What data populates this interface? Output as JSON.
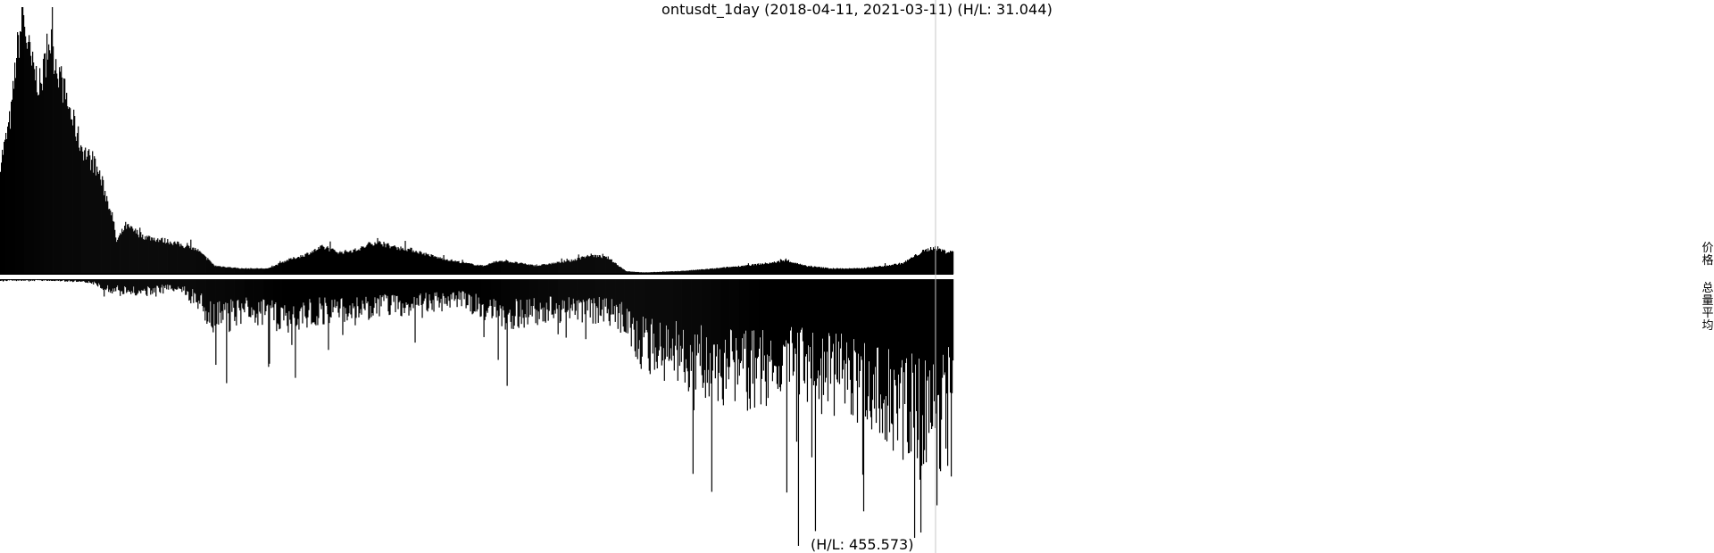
{
  "chart_data": {
    "type": "area",
    "title": "ontusdt_1day (2018-04-11, 2021-03-11) (H/L: 31.044)",
    "x_start": "2018-04-11",
    "x_end": "2021-03-11",
    "price_panel": {
      "name": "价格",
      "high_low_ratio": 31.044,
      "keyframes": [
        [
          0,
          0.42
        ],
        [
          6,
          0.5
        ],
        [
          12,
          0.6
        ],
        [
          18,
          0.82
        ],
        [
          25,
          0.96
        ],
        [
          35,
          0.78
        ],
        [
          45,
          0.7
        ],
        [
          55,
          0.88
        ],
        [
          60,
          0.82
        ],
        [
          75,
          0.64
        ],
        [
          90,
          0.48
        ],
        [
          110,
          0.38
        ],
        [
          125,
          0.22
        ],
        [
          130,
          0.12
        ],
        [
          140,
          0.18
        ],
        [
          160,
          0.14
        ],
        [
          190,
          0.12
        ],
        [
          220,
          0.09
        ],
        [
          240,
          0.03
        ],
        [
          270,
          0.02
        ],
        [
          300,
          0.02
        ],
        [
          320,
          0.05
        ],
        [
          340,
          0.07
        ],
        [
          360,
          0.1
        ],
        [
          380,
          0.08
        ],
        [
          400,
          0.09
        ],
        [
          420,
          0.12
        ],
        [
          440,
          0.1
        ],
        [
          460,
          0.09
        ],
        [
          490,
          0.06
        ],
        [
          520,
          0.04
        ],
        [
          540,
          0.03
        ],
        [
          560,
          0.05
        ],
        [
          580,
          0.04
        ],
        [
          600,
          0.03
        ],
        [
          620,
          0.04
        ],
        [
          640,
          0.05
        ],
        [
          660,
          0.07
        ],
        [
          680,
          0.06
        ],
        [
          700,
          0.01
        ],
        [
          720,
          0.005
        ],
        [
          760,
          0.01
        ],
        [
          800,
          0.02
        ],
        [
          830,
          0.03
        ],
        [
          860,
          0.04
        ],
        [
          880,
          0.05
        ],
        [
          900,
          0.03
        ],
        [
          930,
          0.02
        ],
        [
          960,
          0.02
        ],
        [
          990,
          0.03
        ],
        [
          1010,
          0.04
        ],
        [
          1030,
          0.08
        ],
        [
          1045,
          0.1
        ],
        [
          1060,
          0.08
        ],
        [
          1067,
          0.09
        ]
      ],
      "spikes": [
        [
          25,
          1.0
        ]
      ]
    },
    "volume_panel": {
      "name": "总量平均",
      "high_low_ratio": 455.573,
      "keyframes": [
        [
          0,
          0.005
        ],
        [
          60,
          0.005
        ],
        [
          100,
          0.01
        ],
        [
          125,
          0.04
        ],
        [
          150,
          0.05
        ],
        [
          200,
          0.03
        ],
        [
          220,
          0.08
        ],
        [
          240,
          0.15
        ],
        [
          280,
          0.12
        ],
        [
          320,
          0.14
        ],
        [
          360,
          0.12
        ],
        [
          400,
          0.11
        ],
        [
          440,
          0.1
        ],
        [
          480,
          0.09
        ],
        [
          520,
          0.08
        ],
        [
          560,
          0.14
        ],
        [
          600,
          0.12
        ],
        [
          640,
          0.11
        ],
        [
          680,
          0.12
        ],
        [
          700,
          0.15
        ],
        [
          720,
          0.25
        ],
        [
          760,
          0.28
        ],
        [
          800,
          0.32
        ],
        [
          840,
          0.35
        ],
        [
          880,
          0.3
        ],
        [
          900,
          0.33
        ],
        [
          950,
          0.38
        ],
        [
          1000,
          0.45
        ],
        [
          1040,
          0.55
        ],
        [
          1060,
          0.45
        ],
        [
          1067,
          0.3
        ]
      ],
      "spikes": [
        [
          253,
          0.39
        ],
        [
          330,
          0.37
        ],
        [
          567,
          0.4
        ],
        [
          775,
          0.73
        ],
        [
          880,
          0.8
        ],
        [
          893,
          1.0
        ],
        [
          1023,
          0.97
        ],
        [
          1030,
          0.95
        ],
        [
          1052,
          0.72
        ],
        [
          1060,
          0.7
        ],
        [
          1064,
          0.74
        ]
      ]
    },
    "cursor_day": 1047,
    "colors": {
      "fill": "#000000",
      "cursor": "#c8c8c8",
      "background": "#ffffff"
    }
  },
  "labels": {
    "title": "ontusdt_1day (2018-04-11, 2021-03-11) (H/L: 31.044)",
    "bottom": "(H/L: 455.573)",
    "price_glyphs": [
      "价",
      "格"
    ],
    "volume_glyphs": [
      "总",
      "量",
      "平",
      "均"
    ]
  }
}
